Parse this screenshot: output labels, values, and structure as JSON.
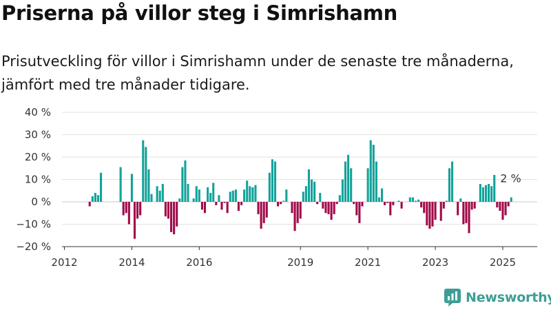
{
  "header": {
    "title": "Priserna på villor steg i Simrishamn",
    "subtitle": "Prisutveckling för villor i Simrishamn under de senaste tre månaderna, jämfört med tre månader tidigare."
  },
  "brand": {
    "name": "Newsworthy",
    "icon": "newsworthy-logo-icon"
  },
  "colors": {
    "positive": "#12a29a",
    "negative": "#a10a4a",
    "grid": "#e2e2e2",
    "axis": "#333333"
  },
  "chart_data": {
    "type": "bar",
    "title": "",
    "xlabel": "",
    "ylabel": "",
    "x_ticks": [
      "2012",
      "2014",
      "2016",
      "2019",
      "2021",
      "2023",
      "2025"
    ],
    "y_ticks": [
      "40 %",
      "30 %",
      "20 %",
      "10 %",
      "0 %",
      "−10 %",
      "−20 %"
    ],
    "ylim": [
      -20,
      40
    ],
    "grid": true,
    "last_label": "2 %",
    "x": [
      "2012-10",
      "2012-11",
      "2012-12",
      "2013-01",
      "2013-02",
      "2013-09",
      "2013-10",
      "2013-11",
      "2013-12",
      "2014-01",
      "2014-02",
      "2014-03",
      "2014-04",
      "2014-05",
      "2014-06",
      "2014-07",
      "2014-08",
      "2014-09",
      "2014-10",
      "2014-11",
      "2014-12",
      "2015-01",
      "2015-02",
      "2015-03",
      "2015-04",
      "2015-05",
      "2015-06",
      "2015-07",
      "2015-08",
      "2015-09",
      "2015-10",
      "2015-11",
      "2015-12",
      "2016-01",
      "2016-02",
      "2016-03",
      "2016-04",
      "2016-05",
      "2016-06",
      "2016-07",
      "2016-08",
      "2016-09",
      "2016-10",
      "2016-11",
      "2016-12",
      "2017-01",
      "2017-02",
      "2017-03",
      "2017-04",
      "2017-05",
      "2017-06",
      "2017-07",
      "2017-08",
      "2017-09",
      "2017-10",
      "2017-11",
      "2017-12",
      "2018-01",
      "2018-02",
      "2018-03",
      "2018-04",
      "2018-05",
      "2018-06",
      "2018-07",
      "2018-08",
      "2018-09",
      "2018-10",
      "2018-11",
      "2018-12",
      "2019-01",
      "2019-02",
      "2019-03",
      "2019-04",
      "2019-05",
      "2019-06",
      "2019-07",
      "2019-08",
      "2019-09",
      "2019-10",
      "2019-11",
      "2019-12",
      "2020-01",
      "2020-02",
      "2020-03",
      "2020-04",
      "2020-05",
      "2020-06",
      "2020-07",
      "2020-08",
      "2020-09",
      "2020-10",
      "2020-11",
      "2020-12",
      "2021-01",
      "2021-02",
      "2021-03",
      "2021-04",
      "2021-05",
      "2021-06",
      "2021-07",
      "2021-08",
      "2021-09",
      "2021-10",
      "2021-11",
      "2021-12",
      "2022-01",
      "2022-02",
      "2022-03",
      "2022-04",
      "2022-05",
      "2022-06",
      "2022-07",
      "2022-08",
      "2022-09",
      "2022-10",
      "2022-11",
      "2022-12",
      "2023-01",
      "2023-02",
      "2023-03",
      "2023-04",
      "2023-05",
      "2023-06",
      "2023-07",
      "2023-08",
      "2023-09",
      "2023-10",
      "2023-11",
      "2023-12",
      "2024-01",
      "2024-02",
      "2024-03",
      "2024-04",
      "2024-05",
      "2024-06",
      "2024-07",
      "2024-08",
      "2024-09",
      "2024-10",
      "2024-11",
      "2024-12",
      "2025-01",
      "2025-02",
      "2025-03",
      "2025-04"
    ],
    "values": [
      -2,
      2.5,
      4,
      3,
      13,
      15.5,
      -6,
      -5,
      -10,
      12.5,
      -16.5,
      -7.5,
      -6,
      27.5,
      24.5,
      14.5,
      3.5,
      0,
      7,
      5,
      8,
      -6.5,
      -7.5,
      -13.5,
      -14.5,
      -11,
      1.5,
      15.5,
      18.5,
      8,
      0,
      1.5,
      7,
      5.5,
      -3.5,
      -5,
      6.5,
      4,
      8.5,
      -1.5,
      3,
      -3.5,
      -0.5,
      -5,
      4.5,
      5,
      5.5,
      -4,
      -1.5,
      5.5,
      9.5,
      7,
      6.5,
      7.5,
      -5.5,
      -12,
      -9.5,
      -7,
      13,
      19,
      18,
      -2,
      -1,
      0.5,
      5.5,
      0,
      -5,
      -13,
      -9.5,
      -7.5,
      4.5,
      7,
      14.5,
      10,
      9,
      -1,
      4,
      -3,
      -5,
      -5.5,
      -8,
      -5.5,
      -1,
      3,
      10,
      18,
      21,
      15,
      -1,
      -6,
      -9.5,
      -2,
      0,
      15,
      27.5,
      25.5,
      18,
      2,
      6,
      -1.5,
      -0.5,
      -6,
      -1.5,
      0,
      0.5,
      -3,
      0,
      0,
      2,
      2,
      0.5,
      1,
      -2.5,
      -5,
      -10.5,
      -12,
      -11,
      -8,
      0,
      -8.5,
      -3,
      0.5,
      15,
      18,
      0,
      -6,
      1.5,
      -10,
      -9.5,
      -14,
      -3.5,
      -3,
      0,
      8,
      6.5,
      7.5,
      8,
      7,
      12,
      -2.5,
      -4,
      -8,
      -6,
      -2,
      2
    ]
  }
}
